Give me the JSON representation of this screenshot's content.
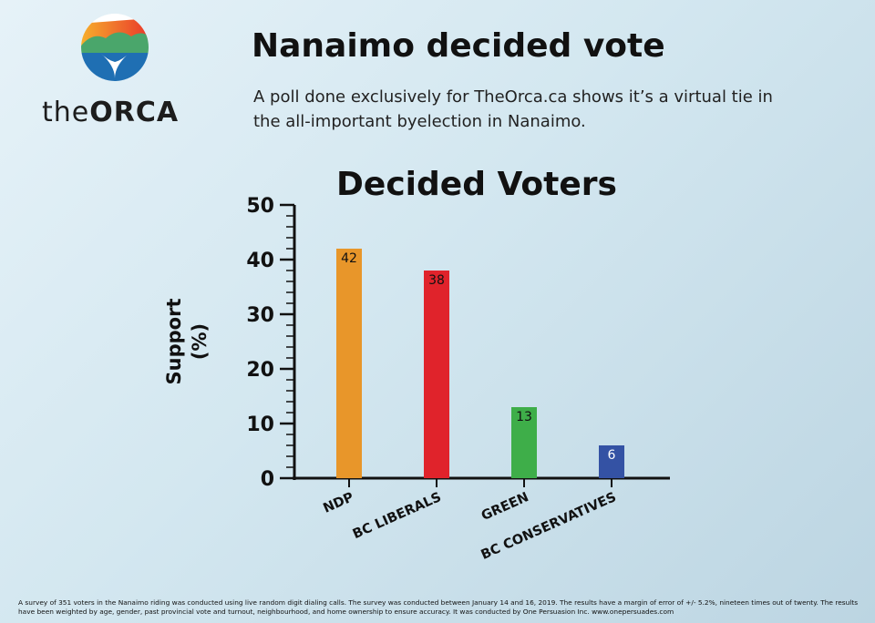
{
  "brand": {
    "name_thin": "the",
    "name_bold": "ORCA"
  },
  "header": {
    "title": "Nanaimo decided vote",
    "subtitle": "A poll done exclusively for TheOrca.ca shows it’s a virtual tie in the all-important byelection in Nanaimo."
  },
  "chart_data": {
    "type": "bar",
    "title": "Decided Voters",
    "ylabel_line1": "Support",
    "ylabel_line2": "(%)",
    "categories": [
      "NDP",
      "BC LIBERALS",
      "GREEN",
      "BC CONSERVATIVES"
    ],
    "values": [
      42,
      38,
      13,
      6
    ],
    "data_labels": [
      "42",
      "38",
      "13",
      "6"
    ],
    "colors": [
      "#e8962a",
      "#e0232b",
      "#3eae49",
      "#3452a4"
    ],
    "ylim": [
      0,
      50
    ],
    "yticks": [
      "0",
      "10",
      "20",
      "30",
      "40",
      "50"
    ],
    "grid": false
  },
  "footnote": "A survey of 351 voters in the Nanaimo riding was conducted using live random digit dialing calls. The survey was conducted between January 14 and 16, 2019. The results have a margin of error of +/- 5.2%, nineteen times out of twenty. The results have been weighted by age, gender, past provincial vote and turnout, neighbourhood, and home ownership to ensure accuracy. It was conducted by One Persuasion Inc. www.onepersuades.com"
}
